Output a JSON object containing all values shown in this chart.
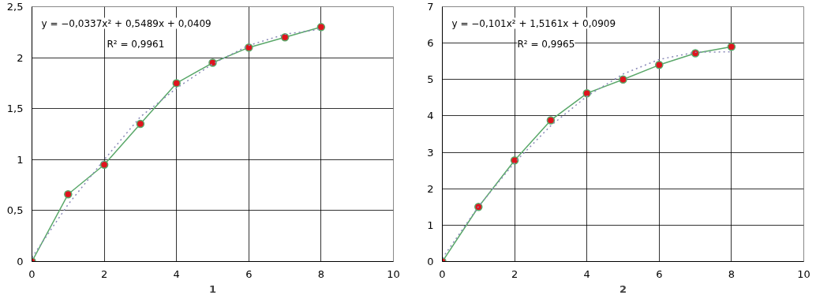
{
  "chart_data": [
    {
      "type": "line",
      "title": "1",
      "x": [
        0,
        1,
        2,
        3,
        4,
        5,
        6,
        7,
        8
      ],
      "xlim": [
        0,
        10
      ],
      "xticks": [
        0,
        2,
        4,
        6,
        8,
        10
      ],
      "ylim": [
        0,
        2.5
      ],
      "yticks": [
        0,
        {
          "value": 0.5,
          "label": "0,5"
        },
        1,
        {
          "value": 1.5,
          "label": "1,5"
        },
        2,
        {
          "value": 2.5,
          "label": "2,5"
        }
      ],
      "grid": true,
      "marker": "circle",
      "line_style": "solid",
      "series": [
        {
          "color": "#5aa86a",
          "values": [
            0,
            0.66,
            0.95,
            1.35,
            1.75,
            1.95,
            2.1,
            2.2,
            2.3
          ]
        },
        {
          "type": "line",
          "color": "#8a8ab8",
          "line_style": "dotted",
          "marker": "none",
          "x": [
            0,
            1,
            2,
            3,
            4,
            5,
            6,
            7,
            8
          ],
          "values": [
            0.04,
            0.56,
            1.0,
            1.42,
            1.7,
            1.94,
            2.12,
            2.23,
            2.28
          ]
        }
      ],
      "annotations": [
        "y = −0,0337x² + 0,5489x + 0,0409",
        "R² = 0,9961"
      ]
    },
    {
      "type": "line",
      "title": "2",
      "x": [
        0,
        1,
        2,
        3,
        4,
        5,
        6,
        7,
        8
      ],
      "xlim": [
        0,
        10
      ],
      "xticks": [
        0,
        2,
        4,
        6,
        8,
        10
      ],
      "ylim": [
        0,
        7
      ],
      "yticks": [
        0,
        1,
        2,
        3,
        4,
        5,
        6,
        7
      ],
      "grid": true,
      "marker": "circle",
      "line_style": "solid",
      "series": [
        {
          "color": "#5aa86a",
          "values": [
            0,
            1.5,
            2.78,
            3.88,
            4.62,
            5.0,
            5.4,
            5.72,
            5.9
          ]
        },
        {
          "type": "line",
          "color": "#8a8ab8",
          "line_style": "dotted",
          "marker": "none",
          "x": [
            0,
            1,
            2,
            3,
            4,
            5,
            6,
            7,
            8
          ],
          "values": [
            0.09,
            1.51,
            2.72,
            3.73,
            4.54,
            5.15,
            5.55,
            5.75,
            5.76
          ]
        }
      ],
      "annotations": [
        "y = −0,101x² + 1,5161x + 0,0909",
        "R² = 0,9965"
      ]
    }
  ]
}
